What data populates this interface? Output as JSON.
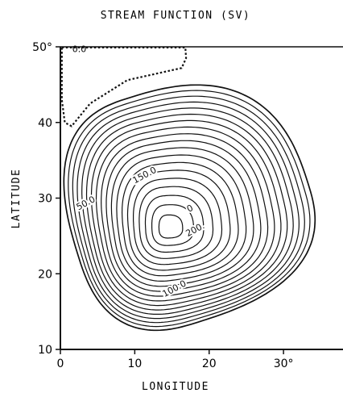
{
  "chart_data": {
    "type": "contour",
    "title": "STREAM FUNCTION (SV)",
    "xlabel": "LONGITUDE",
    "ylabel": "LATITUDE",
    "xlim": [
      0,
      38
    ],
    "ylim": [
      10,
      50
    ],
    "x_ticks": [
      {
        "value": 0,
        "label": "0"
      },
      {
        "value": 10,
        "label": "10"
      },
      {
        "value": 20,
        "label": "20"
      },
      {
        "value": 30,
        "label": "30°"
      }
    ],
    "y_ticks": [
      {
        "value": 10,
        "label": "10"
      },
      {
        "value": 20,
        "label": "20"
      },
      {
        "value": 30,
        "label": "30"
      },
      {
        "value": 40,
        "label": "40"
      },
      {
        "value": 50,
        "label": "50°"
      }
    ],
    "gyre": {
      "center": [
        14.5,
        26.0
      ],
      "outer_extent": {
        "west": 0.6,
        "east": 36.2,
        "south": 11.7,
        "north": 45.8
      },
      "contour_count": 19,
      "contour_interval": 10,
      "max_value": 200
    },
    "dashed_region": {
      "label": "0.0",
      "outline": [
        [
          0.2,
          49.9
        ],
        [
          16.8,
          49.9
        ],
        [
          16.9,
          48.5
        ],
        [
          16.3,
          47.2
        ],
        [
          9.0,
          45.6
        ],
        [
          4.0,
          42.5
        ],
        [
          1.5,
          39.5
        ],
        [
          0.6,
          40.0
        ],
        [
          0.2,
          43.0
        ]
      ]
    },
    "contour_labels": [
      {
        "text": "50.0",
        "x": 3.6,
        "y": 29.0
      },
      {
        "text": "150.0",
        "x": 11.5,
        "y": 32.7
      },
      {
        "text": "0",
        "x": 17.6,
        "y": 28.3
      },
      {
        "text": "200.",
        "x": 18.3,
        "y": 25.5
      },
      {
        "text": "100.0",
        "x": 15.5,
        "y": 17.7
      }
    ]
  }
}
